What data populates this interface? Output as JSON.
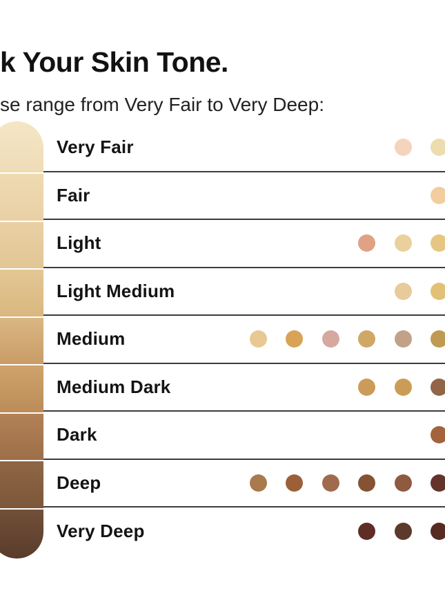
{
  "page": {
    "title": "k Your Skin Tone.",
    "subtitle": "se range from Very Fair to Very Deep:"
  },
  "palette": {
    "row_divider": "#3b3b3b",
    "label_text": "#141414",
    "background": "#ffffff"
  },
  "rows": [
    {
      "label": "Very Fair",
      "bar_gradient": [
        "#f4e6c6",
        "#eedcb6"
      ],
      "dots": [
        "#f5d3bd",
        "#ecdcae"
      ]
    },
    {
      "label": "Fair",
      "bar_gradient": [
        "#efdab2",
        "#e9d0a6"
      ],
      "dots": [
        "#f2cda0"
      ]
    },
    {
      "label": "Light",
      "bar_gradient": [
        "#e9d0a4",
        "#e2c695"
      ],
      "dots": [
        "#dfa285",
        "#ead09b",
        "#e7c683"
      ]
    },
    {
      "label": "Light Medium",
      "bar_gradient": [
        "#e3c795",
        "#dab77f"
      ],
      "dots": [
        "#e8ca9b",
        "#e2c077"
      ]
    },
    {
      "label": "Medium",
      "bar_gradient": [
        "#dab783",
        "#c99c66"
      ],
      "dots": [
        "#e8c893",
        "#d9a355",
        "#d5a9a0",
        "#cfa866",
        "#c2a187",
        "#bf9a52"
      ]
    },
    {
      "label": "Medium Dark",
      "bar_gradient": [
        "#cfa36c",
        "#bb8c58"
      ],
      "dots": [
        "#cd9b59",
        "#cb9c55",
        "#916546"
      ]
    },
    {
      "label": "Dark",
      "bar_gradient": [
        "#b28156",
        "#9d6f48"
      ],
      "dots": [
        "#a3633c"
      ]
    },
    {
      "label": "Deep",
      "bar_gradient": [
        "#8f6746",
        "#7c563a"
      ],
      "dots": [
        "#a87a4e",
        "#9c6038",
        "#a06a4e",
        "#855233",
        "#8e5a40",
        "#63342a"
      ]
    },
    {
      "label": "Very Deep",
      "bar_gradient": [
        "#72503a",
        "#583c2a"
      ],
      "dots": [
        "#5e2d26",
        "#5c392b",
        "#572b22"
      ]
    }
  ]
}
